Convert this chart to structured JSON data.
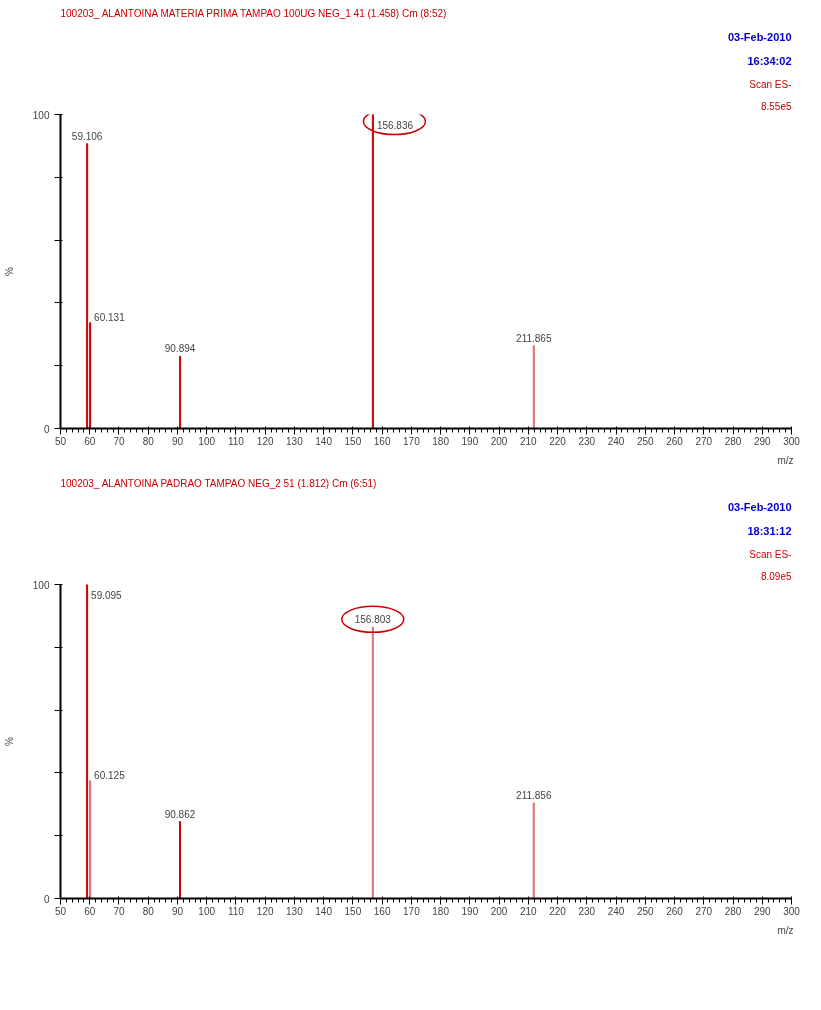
{
  "chart_data": [
    {
      "type": "bar",
      "title": "100203_ ALANTOINA MATERIA PRIMA TAMPAO 100UG NEG_1 41 (1.458) Cm (8:52)",
      "ylabel": "%",
      "xlabel": "m/z",
      "x": [
        59.106,
        60.131,
        90.894,
        156.836,
        211.865
      ],
      "values": [
        90.7,
        33.7,
        23,
        100,
        26.4
      ],
      "colors": [
        "#cc0000",
        "#cc0000",
        "#cc0000",
        "#cc0000",
        "#e07070"
      ],
      "xlim": [
        50,
        300
      ],
      "xticks": [
        50,
        60,
        70,
        80,
        90,
        100,
        110,
        120,
        130,
        140,
        150,
        160,
        170,
        180,
        190,
        200,
        210,
        220,
        230,
        240,
        250,
        260,
        270,
        280,
        290,
        300
      ],
      "ylim": [
        0,
        100
      ],
      "yticks": [
        0,
        {
          "value": 20,
          "label": null
        },
        {
          "value": 40,
          "label": null
        },
        {
          "value": 60,
          "label": null
        },
        {
          "value": 80,
          "label": null
        },
        100
      ],
      "grid": false,
      "annotations": [
        "03-Feb-2010",
        "16:34:02",
        "Scan ES-",
        "8.55e5",
        {
          "text": "156.836",
          "x": 156.836,
          "y": 100
        },
        {
          "text": "59.106",
          "x": 59.106,
          "y": 90.7
        },
        {
          "text": "60.131",
          "x": 60.131,
          "y": 33.7
        },
        {
          "text": "90.894",
          "x": 90.894,
          "y": 23
        },
        {
          "text": "211.865",
          "x": 211.865,
          "y": 26.4
        }
      ]
    },
    {
      "type": "bar",
      "title": "100203_ ALANTOINA PADRAO TAMPAO NEG_2 51 (1.812) Cm (6:51)",
      "ylabel": "%",
      "xlabel": "m/z",
      "x": [
        59.095,
        60.125,
        90.862,
        156.803,
        211.856
      ],
      "values": [
        100,
        37.5,
        24.5,
        86.4,
        30.4
      ],
      "colors": [
        "#cc0000",
        "#e07070",
        "#cc0000",
        "#e07070",
        "#e07070"
      ],
      "xlim": [
        50,
        300
      ],
      "xticks": [
        50,
        60,
        70,
        80,
        90,
        100,
        110,
        120,
        130,
        140,
        150,
        160,
        170,
        180,
        190,
        200,
        210,
        220,
        230,
        240,
        250,
        260,
        270,
        280,
        290,
        300
      ],
      "ylim": [
        0,
        100
      ],
      "yticks": [
        0,
        {
          "value": 20,
          "label": null
        },
        {
          "value": 40,
          "label": null
        },
        {
          "value": 60,
          "label": null
        },
        {
          "value": 80,
          "label": null
        },
        100
      ],
      "grid": false,
      "annotations": [
        "03-Feb-2010",
        "18:31:12",
        "Scan ES-",
        "8.09e5",
        {
          "text": "156.803",
          "x": 156.803,
          "y": 86.4
        },
        {
          "text": "59.095",
          "x": 59.095,
          "y": 100
        },
        {
          "text": "60.125",
          "x": 60.125,
          "y": 37.5
        },
        {
          "text": "90.862",
          "x": 90.862,
          "y": 24.5
        },
        {
          "text": "211.856",
          "x": 211.856,
          "y": 30.4
        }
      ]
    }
  ]
}
